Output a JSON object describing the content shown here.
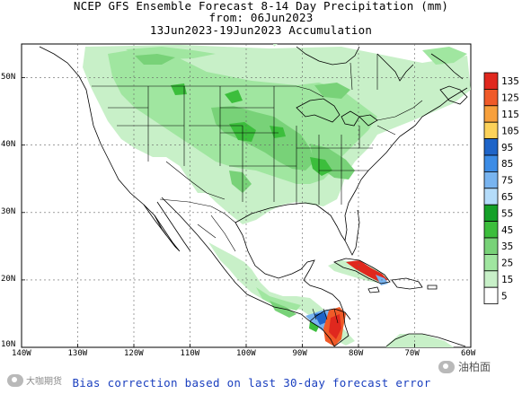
{
  "title": {
    "line1": "NCEP GFS Ensemble Forecast 8-14 Day Precipitation (mm)",
    "line2": "from: 06Jun2023",
    "line3": "13Jun2023-19Jun2023 Accumulation"
  },
  "footer_note": "Bias correction based on last 30-day forecast error",
  "watermarks": {
    "left": "大咖期货",
    "right": "油柏面"
  },
  "axes": {
    "lon_labels": [
      "140W",
      "130W",
      "120W",
      "110W",
      "100W",
      "90W",
      "80W",
      "70W",
      "60W"
    ],
    "lat_labels": [
      "10N",
      "20N",
      "30N",
      "40N",
      "50N"
    ],
    "lon_range": [
      -140,
      -60
    ],
    "lat_range": [
      10,
      55
    ]
  },
  "legend": {
    "labels": [
      "135",
      "125",
      "115",
      "105",
      "95",
      "85",
      "75",
      "65",
      "55",
      "45",
      "35",
      "25",
      "15",
      "5"
    ],
    "colors": [
      "#e0281e",
      "#f05a28",
      "#f7a03c",
      "#fcd25a",
      "#1e64c8",
      "#3c8ce6",
      "#78b4f0",
      "#b4dcfa",
      "#14a028",
      "#3cbe3c",
      "#78d278",
      "#a0e6a0",
      "#c8f0c8",
      "#ffffff"
    ]
  },
  "map_colors": {
    "ocean": "#ffffff",
    "land": "#ffffff",
    "light_green": "#c8f0c8",
    "mid_green": "#a0e6a0",
    "green": "#78d278",
    "dark_green": "#3cbe3c",
    "light_blue": "#78b4f0",
    "blue": "#1e64c8",
    "orange": "#f05a28",
    "red": "#e0281e"
  }
}
